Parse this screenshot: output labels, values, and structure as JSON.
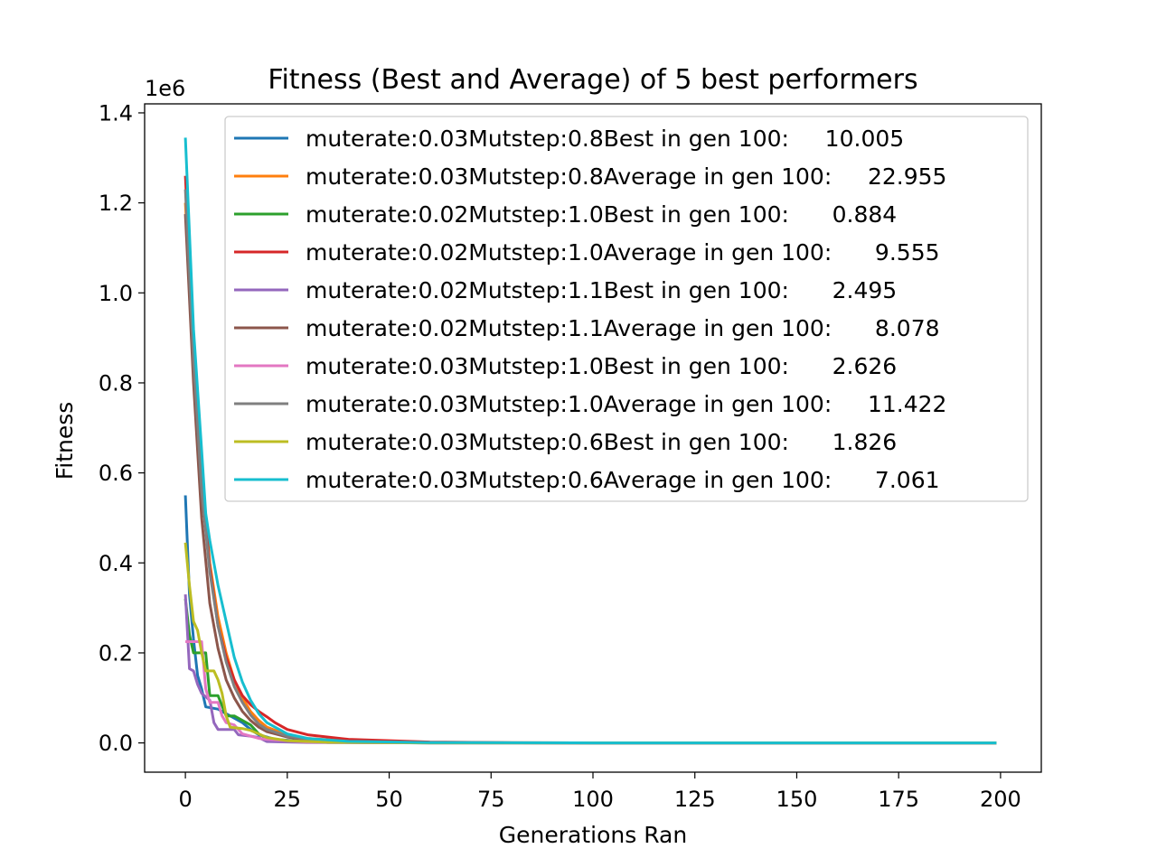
{
  "chart_data": {
    "type": "line",
    "title": "Fitness (Best and Average) of 5 best performers",
    "xlabel": "Generations Ran",
    "ylabel": "Fitness",
    "y_offset_label": "1e6",
    "xlim": [
      -10,
      210
    ],
    "ylim": [
      -65000,
      1420000
    ],
    "x_ticks": [
      0,
      25,
      50,
      75,
      100,
      125,
      150,
      175,
      200
    ],
    "x_tick_labels": [
      "0",
      "25",
      "50",
      "75",
      "100",
      "125",
      "150",
      "175",
      "200"
    ],
    "y_ticks": [
      0,
      200000,
      400000,
      600000,
      800000,
      1000000,
      1200000,
      1400000
    ],
    "y_tick_labels": [
      "0.0",
      "0.2",
      "0.4",
      "0.6",
      "0.8",
      "1.0",
      "1.2",
      "1.4"
    ],
    "grid": false,
    "legend_position": "upper-right",
    "series": [
      {
        "name": "muterate:0.03Mutstep:0.8Best in gen 100:     10.005",
        "color": "#1f77b4",
        "points": [
          [
            0,
            550000
          ],
          [
            1,
            330000
          ],
          [
            2,
            230000
          ],
          [
            3,
            150000
          ],
          [
            4,
            120000
          ],
          [
            5,
            80000
          ],
          [
            8,
            75000
          ],
          [
            10,
            65000
          ],
          [
            12,
            55000
          ],
          [
            14,
            45000
          ],
          [
            16,
            30000
          ],
          [
            18,
            18000
          ],
          [
            22,
            8000
          ],
          [
            30,
            3000
          ],
          [
            50,
            500
          ],
          [
            100,
            10
          ],
          [
            199,
            10
          ]
        ]
      },
      {
        "name": "muterate:0.03Mutstep:0.8Average in gen 100:     22.955",
        "color": "#ff7f0e",
        "points": [
          [
            0,
            1200000
          ],
          [
            2,
            870000
          ],
          [
            4,
            600000
          ],
          [
            6,
            400000
          ],
          [
            8,
            280000
          ],
          [
            10,
            200000
          ],
          [
            12,
            140000
          ],
          [
            14,
            100000
          ],
          [
            16,
            70000
          ],
          [
            18,
            50000
          ],
          [
            20,
            35000
          ],
          [
            25,
            18000
          ],
          [
            30,
            10000
          ],
          [
            40,
            4000
          ],
          [
            60,
            1000
          ],
          [
            100,
            23
          ],
          [
            199,
            23
          ]
        ]
      },
      {
        "name": "muterate:0.02Mutstep:1.0Best in gen 100:      0.884",
        "color": "#2ca02c",
        "points": [
          [
            0,
            320000
          ],
          [
            1,
            240000
          ],
          [
            2,
            200000
          ],
          [
            4,
            200000
          ],
          [
            5,
            200000
          ],
          [
            6,
            105000
          ],
          [
            8,
            105000
          ],
          [
            10,
            60000
          ],
          [
            12,
            60000
          ],
          [
            14,
            50000
          ],
          [
            16,
            40000
          ],
          [
            18,
            20000
          ],
          [
            20,
            10000
          ],
          [
            25,
            5000
          ],
          [
            35,
            1000
          ],
          [
            60,
            100
          ],
          [
            100,
            1
          ],
          [
            199,
            1
          ]
        ]
      },
      {
        "name": "muterate:0.02Mutstep:1.0Average in gen 100:      9.555",
        "color": "#d62728",
        "points": [
          [
            0,
            1260000
          ],
          [
            2,
            880000
          ],
          [
            4,
            580000
          ],
          [
            6,
            390000
          ],
          [
            8,
            260000
          ],
          [
            10,
            190000
          ],
          [
            12,
            140000
          ],
          [
            14,
            105000
          ],
          [
            16,
            85000
          ],
          [
            18,
            70000
          ],
          [
            20,
            58000
          ],
          [
            22,
            45000
          ],
          [
            25,
            30000
          ],
          [
            30,
            18000
          ],
          [
            40,
            8000
          ],
          [
            60,
            2000
          ],
          [
            80,
            500
          ],
          [
            100,
            10
          ],
          [
            199,
            10
          ]
        ]
      },
      {
        "name": "muterate:0.02Mutstep:1.1Best in gen 100:      2.495",
        "color": "#9467bd",
        "points": [
          [
            0,
            330000
          ],
          [
            1,
            165000
          ],
          [
            2,
            160000
          ],
          [
            3,
            130000
          ],
          [
            4,
            110000
          ],
          [
            6,
            95000
          ],
          [
            7,
            45000
          ],
          [
            8,
            30000
          ],
          [
            12,
            30000
          ],
          [
            13,
            18000
          ],
          [
            16,
            15000
          ],
          [
            18,
            12000
          ],
          [
            20,
            3000
          ],
          [
            30,
            1000
          ],
          [
            60,
            100
          ],
          [
            100,
            2
          ],
          [
            199,
            2
          ]
        ]
      },
      {
        "name": "muterate:0.02Mutstep:1.1Average in gen 100:      8.078",
        "color": "#8c564b",
        "points": [
          [
            0,
            1175000
          ],
          [
            2,
            800000
          ],
          [
            4,
            500000
          ],
          [
            6,
            310000
          ],
          [
            8,
            210000
          ],
          [
            10,
            140000
          ],
          [
            12,
            100000
          ],
          [
            14,
            70000
          ],
          [
            16,
            50000
          ],
          [
            18,
            35000
          ],
          [
            20,
            25000
          ],
          [
            25,
            13000
          ],
          [
            30,
            7000
          ],
          [
            40,
            3000
          ],
          [
            60,
            600
          ],
          [
            100,
            8
          ],
          [
            199,
            8
          ]
        ]
      },
      {
        "name": "muterate:0.03Mutstep:1.0Best in gen 100:      2.626",
        "color": "#e377c2",
        "points": [
          [
            0,
            225000
          ],
          [
            2,
            225000
          ],
          [
            4,
            225000
          ],
          [
            5,
            120000
          ],
          [
            6,
            90000
          ],
          [
            8,
            90000
          ],
          [
            9,
            60000
          ],
          [
            10,
            45000
          ],
          [
            12,
            40000
          ],
          [
            14,
            20000
          ],
          [
            18,
            10000
          ],
          [
            20,
            8000
          ],
          [
            30,
            2000
          ],
          [
            60,
            100
          ],
          [
            100,
            3
          ],
          [
            199,
            3
          ]
        ]
      },
      {
        "name": "muterate:0.03Mutstep:1.0Average in gen 100:     11.422",
        "color": "#7f7f7f",
        "points": [
          [
            0,
            1230000
          ],
          [
            2,
            850000
          ],
          [
            4,
            560000
          ],
          [
            6,
            380000
          ],
          [
            8,
            260000
          ],
          [
            10,
            180000
          ],
          [
            12,
            125000
          ],
          [
            14,
            90000
          ],
          [
            16,
            62000
          ],
          [
            18,
            42000
          ],
          [
            20,
            30000
          ],
          [
            25,
            15000
          ],
          [
            30,
            8000
          ],
          [
            40,
            3000
          ],
          [
            60,
            700
          ],
          [
            100,
            11
          ],
          [
            199,
            11
          ]
        ]
      },
      {
        "name": "muterate:0.03Mutstep:0.6Best in gen 100:      1.826",
        "color": "#bcbd22",
        "points": [
          [
            0,
            445000
          ],
          [
            1,
            350000
          ],
          [
            2,
            270000
          ],
          [
            3,
            250000
          ],
          [
            4,
            200000
          ],
          [
            5,
            160000
          ],
          [
            7,
            160000
          ],
          [
            8,
            140000
          ],
          [
            9,
            110000
          ],
          [
            10,
            60000
          ],
          [
            11,
            35000
          ],
          [
            14,
            32000
          ],
          [
            16,
            28000
          ],
          [
            18,
            20000
          ],
          [
            20,
            12000
          ],
          [
            25,
            5000
          ],
          [
            35,
            1500
          ],
          [
            60,
            100
          ],
          [
            100,
            2
          ],
          [
            199,
            2
          ]
        ]
      },
      {
        "name": "muterate:0.03Mutstep:0.6Average in gen 100:      7.061",
        "color": "#17becf",
        "points": [
          [
            0,
            1345000
          ],
          [
            2,
            920000
          ],
          [
            4,
            650000
          ],
          [
            5,
            510000
          ],
          [
            6,
            450000
          ],
          [
            8,
            350000
          ],
          [
            10,
            270000
          ],
          [
            12,
            190000
          ],
          [
            14,
            135000
          ],
          [
            16,
            95000
          ],
          [
            18,
            65000
          ],
          [
            20,
            45000
          ],
          [
            25,
            20000
          ],
          [
            30,
            10000
          ],
          [
            40,
            3500
          ],
          [
            60,
            800
          ],
          [
            100,
            7
          ],
          [
            199,
            7
          ]
        ]
      }
    ]
  }
}
